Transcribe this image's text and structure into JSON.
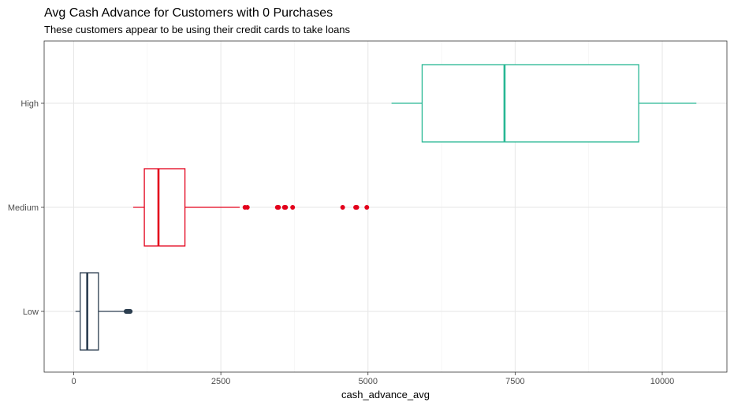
{
  "chart_data": {
    "type": "boxplot",
    "orientation": "horizontal",
    "title": "Avg Cash Advance for Customers with 0 Purchases",
    "subtitle": "These customers appear to be using their credit cards to take loans",
    "xlabel": "cash_advance_avg",
    "ylabel": "",
    "xlim": [
      -750,
      11100
    ],
    "x_ticks": [
      0,
      2500,
      5000,
      7500,
      10000
    ],
    "x_tick_labels": [
      "0",
      "2500",
      "5000",
      "7500",
      "10000"
    ],
    "categories": [
      "Low",
      "Medium",
      "High"
    ],
    "grid": true,
    "legend": "none",
    "boxes": [
      {
        "category": "Low",
        "color": "#2c3e50",
        "whisker_low": 30,
        "q1": 110,
        "median": 230,
        "q3": 420,
        "whisker_high": 880,
        "outliers": [
          890,
          900,
          910,
          920,
          930,
          940,
          950,
          960
        ]
      },
      {
        "category": "Medium",
        "color": "#e3001b",
        "whisker_low": 1010,
        "q1": 1200,
        "median": 1440,
        "q3": 1890,
        "whisker_high": 2820,
        "outliers": [
          2910,
          2950,
          3460,
          3480,
          3580,
          3600,
          3720,
          4570,
          4790,
          4810,
          4980
        ]
      },
      {
        "category": "High",
        "color": "#27b793",
        "whisker_low": 5400,
        "q1": 5920,
        "median": 7320,
        "q3": 9600,
        "whisker_high": 10580,
        "outliers": []
      }
    ]
  }
}
